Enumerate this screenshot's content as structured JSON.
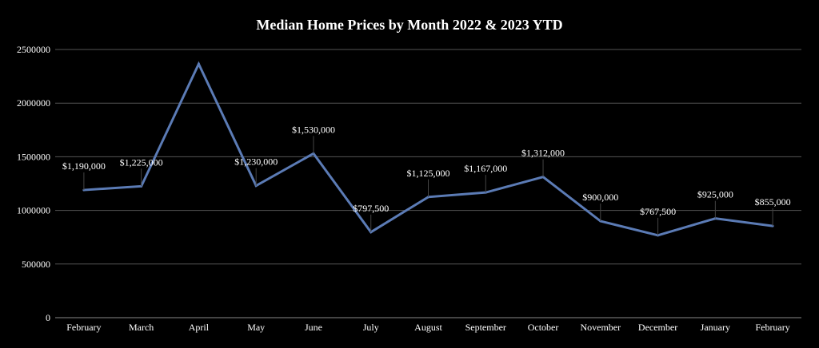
{
  "chart_data": {
    "type": "line",
    "title": "Median Home Prices by Month 2022 & 2023 YTD",
    "categories": [
      "February",
      "March",
      "April",
      "May",
      "June",
      "July",
      "August",
      "September",
      "October",
      "November",
      "December",
      "January",
      "February"
    ],
    "series": [
      {
        "values": [
          1190000,
          1225000,
          2365000,
          1230000,
          1530000,
          797500,
          1125000,
          1167000,
          1312000,
          900000,
          767500,
          925000,
          855000
        ],
        "data_labels": [
          "$1,190,000",
          "$1,225,000",
          "",
          "$1,230,000",
          "$1,530,000",
          "$797,500",
          "$1,125,000",
          "$1,167,000",
          "$1,312,000",
          "$900,000",
          "$767,500",
          "$925,000",
          "$855,000"
        ],
        "color": "#5b7bb5"
      }
    ],
    "y_ticks": [
      "0",
      "500000",
      "1000000",
      "1500000",
      "2000000",
      "2500000"
    ],
    "ylim": [
      0,
      2500000
    ],
    "grid": true,
    "legend": "none",
    "background": "#000000",
    "text_color": "#ffffff"
  }
}
